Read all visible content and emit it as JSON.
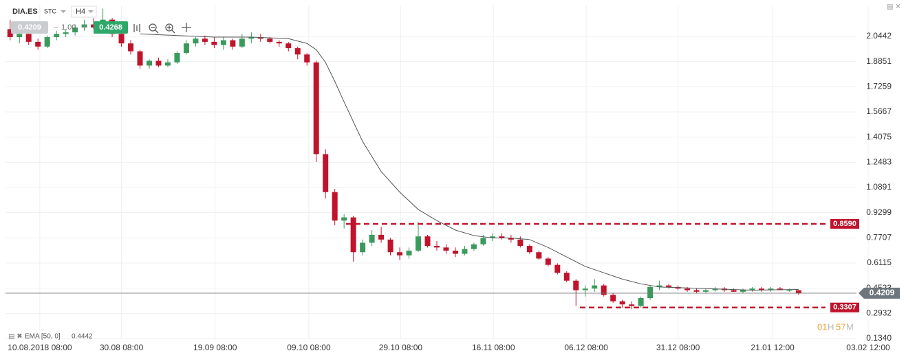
{
  "toolbar": {
    "symbol": "DIA.ES",
    "exchange": "STC",
    "timeframe": "H4",
    "bid": "0.4209",
    "amount": "1.00",
    "ask": "0.4268"
  },
  "legend": {
    "name": "EMA [50, 0]",
    "value": 0.4442
  },
  "timer": {
    "hours": "01",
    "hours_unit": "H",
    "minutes": "57",
    "minutes_unit": "M"
  },
  "chart_data": {
    "type": "candlestick",
    "xlim": [
      0,
      93
    ],
    "xticks": [
      {
        "value": 3.7,
        "label": "10.08.2018 08:00"
      },
      {
        "value": 12.5,
        "label": "30.08 08:00"
      },
      {
        "value": 22.6,
        "label": "19.09 08:00"
      },
      {
        "value": 32.7,
        "label": "09.10 08:00"
      },
      {
        "value": 42.6,
        "label": "29.10 08:00"
      },
      {
        "value": 52.6,
        "label": "16.11 08:00"
      },
      {
        "value": 62.6,
        "label": "06.12 08:00"
      },
      {
        "value": 72.5,
        "label": "31.12 08:00"
      },
      {
        "value": 82.7,
        "label": "21.01 12:00"
      },
      {
        "value": 93,
        "label": "03.02 12:00"
      }
    ],
    "ylim": [
      0.134,
      2.231
    ],
    "yticks": [
      2.0442,
      1.8851,
      1.7259,
      1.5667,
      1.4075,
      1.2483,
      1.0891,
      0.9299,
      0.7707,
      0.6115,
      0.4523,
      0.2932,
      {
        "value": 0.134,
        "label": "0.1340"
      }
    ],
    "grid": true,
    "up_color": "#3a9a5c",
    "down_color": "#c0142c",
    "ohlc": [
      [
        2.09,
        2.15,
        2.02,
        2.04
      ],
      [
        2.04,
        2.08,
        2.0,
        2.06
      ],
      [
        2.06,
        2.07,
        1.99,
        2.01
      ],
      [
        2.01,
        2.03,
        1.96,
        1.98
      ],
      [
        1.98,
        2.05,
        1.97,
        2.04
      ],
      [
        2.04,
        2.08,
        2.02,
        2.06
      ],
      [
        2.06,
        2.09,
        2.04,
        2.07
      ],
      [
        2.07,
        2.12,
        2.05,
        2.1
      ],
      [
        2.1,
        2.15,
        2.08,
        2.12
      ],
      [
        2.12,
        2.16,
        2.09,
        2.1
      ],
      [
        2.1,
        2.22,
        2.08,
        2.15
      ],
      [
        2.15,
        2.16,
        2.04,
        2.06
      ],
      [
        2.06,
        2.08,
        1.98,
        2.0
      ],
      [
        2.0,
        2.02,
        1.93,
        1.95
      ],
      [
        1.95,
        1.96,
        1.84,
        1.86
      ],
      [
        1.86,
        1.9,
        1.84,
        1.89
      ],
      [
        1.89,
        1.91,
        1.85,
        1.86
      ],
      [
        1.86,
        1.9,
        1.85,
        1.88
      ],
      [
        1.88,
        1.95,
        1.87,
        1.94
      ],
      [
        1.94,
        2.02,
        1.93,
        2.0
      ],
      [
        2.0,
        2.04,
        1.98,
        2.03
      ],
      [
        2.03,
        2.05,
        1.99,
        2.01
      ],
      [
        2.01,
        2.04,
        1.97,
        1.99
      ],
      [
        1.99,
        2.04,
        1.96,
        2.02
      ],
      [
        2.02,
        2.03,
        1.96,
        1.98
      ],
      [
        1.98,
        2.06,
        1.97,
        2.03
      ],
      [
        2.03,
        2.07,
        2.0,
        2.04
      ],
      [
        2.04,
        2.06,
        2.01,
        2.03
      ],
      [
        2.03,
        2.04,
        2.0,
        2.01
      ],
      [
        2.01,
        2.02,
        1.98,
        2.0
      ],
      [
        2.0,
        2.01,
        1.95,
        1.97
      ],
      [
        1.97,
        1.98,
        1.9,
        1.93
      ],
      [
        1.93,
        1.94,
        1.86,
        1.88
      ],
      [
        1.88,
        1.89,
        1.25,
        1.3
      ],
      [
        1.3,
        1.33,
        1.02,
        1.06
      ],
      [
        1.06,
        1.08,
        0.85,
        0.88
      ],
      [
        0.88,
        0.92,
        0.83,
        0.9
      ],
      [
        0.9,
        0.91,
        0.62,
        0.68
      ],
      [
        0.68,
        0.76,
        0.66,
        0.74
      ],
      [
        0.74,
        0.82,
        0.72,
        0.79
      ],
      [
        0.79,
        0.84,
        0.74,
        0.76
      ],
      [
        0.76,
        0.77,
        0.66,
        0.68
      ],
      [
        0.68,
        0.71,
        0.63,
        0.66
      ],
      [
        0.66,
        0.71,
        0.64,
        0.69
      ],
      [
        0.69,
        0.87,
        0.68,
        0.78
      ],
      [
        0.78,
        0.79,
        0.71,
        0.72
      ],
      [
        0.72,
        0.75,
        0.69,
        0.71
      ],
      [
        0.71,
        0.73,
        0.67,
        0.69
      ],
      [
        0.69,
        0.71,
        0.65,
        0.67
      ],
      [
        0.67,
        0.72,
        0.66,
        0.7
      ],
      [
        0.7,
        0.74,
        0.69,
        0.73
      ],
      [
        0.73,
        0.79,
        0.72,
        0.77
      ],
      [
        0.77,
        0.8,
        0.75,
        0.78
      ],
      [
        0.78,
        0.8,
        0.76,
        0.77
      ],
      [
        0.77,
        0.79,
        0.74,
        0.76
      ],
      [
        0.76,
        0.78,
        0.71,
        0.72
      ],
      [
        0.72,
        0.73,
        0.67,
        0.68
      ],
      [
        0.68,
        0.69,
        0.63,
        0.64
      ],
      [
        0.64,
        0.65,
        0.59,
        0.6
      ],
      [
        0.6,
        0.61,
        0.54,
        0.55
      ],
      [
        0.55,
        0.56,
        0.49,
        0.5
      ],
      [
        0.5,
        0.51,
        0.34,
        0.44
      ],
      [
        0.44,
        0.47,
        0.4,
        0.45
      ],
      [
        0.45,
        0.51,
        0.43,
        0.47
      ],
      [
        0.47,
        0.48,
        0.4,
        0.41
      ],
      [
        0.41,
        0.42,
        0.36,
        0.37
      ],
      [
        0.37,
        0.38,
        0.33,
        0.35
      ],
      [
        0.35,
        0.37,
        0.32,
        0.34
      ],
      [
        0.34,
        0.4,
        0.33,
        0.39
      ],
      [
        0.39,
        0.47,
        0.38,
        0.46
      ],
      [
        0.46,
        0.5,
        0.44,
        0.47
      ],
      [
        0.47,
        0.48,
        0.45,
        0.46
      ],
      [
        0.46,
        0.47,
        0.44,
        0.45
      ],
      [
        0.45,
        0.46,
        0.43,
        0.44
      ],
      [
        0.44,
        0.45,
        0.42,
        0.43
      ],
      [
        0.43,
        0.45,
        0.42,
        0.44
      ],
      [
        0.44,
        0.46,
        0.43,
        0.45
      ],
      [
        0.45,
        0.46,
        0.43,
        0.44
      ],
      [
        0.44,
        0.45,
        0.43,
        0.43
      ],
      [
        0.43,
        0.45,
        0.42,
        0.44
      ],
      [
        0.44,
        0.46,
        0.43,
        0.45
      ],
      [
        0.45,
        0.46,
        0.43,
        0.44
      ],
      [
        0.44,
        0.46,
        0.43,
        0.45
      ],
      [
        0.45,
        0.46,
        0.44,
        0.44
      ],
      [
        0.44,
        0.45,
        0.43,
        0.44
      ],
      [
        0.44,
        0.44,
        0.41,
        0.42
      ]
    ],
    "ema": {
      "color": "#555555",
      "x": [
        14,
        18,
        22,
        26,
        30,
        32,
        33,
        34,
        35,
        36,
        38,
        40,
        42,
        44,
        46,
        48,
        50,
        52,
        54,
        56,
        58,
        60,
        62,
        64,
        66,
        68,
        70,
        75,
        80,
        85
      ],
      "values": [
        2.06,
        2.05,
        2.04,
        2.04,
        2.03,
        2.0,
        1.96,
        1.88,
        1.76,
        1.63,
        1.38,
        1.19,
        1.06,
        0.95,
        0.88,
        0.82,
        0.785,
        0.77,
        0.77,
        0.76,
        0.71,
        0.65,
        0.59,
        0.55,
        0.51,
        0.48,
        0.46,
        0.45,
        0.44,
        0.4442
      ]
    },
    "current_price": 0.4209,
    "levels": [
      {
        "value": 0.859,
        "label": "0.8590",
        "color": "#c0142c"
      },
      {
        "value": 0.3307,
        "label": "0.3307",
        "color": "#c0142c"
      }
    ]
  }
}
